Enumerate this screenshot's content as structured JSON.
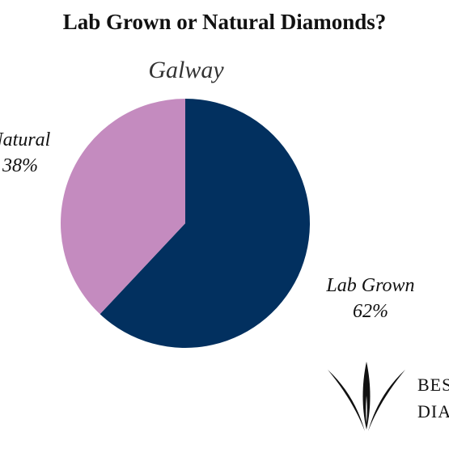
{
  "chart_data": {
    "type": "pie",
    "title": "Lab Grown or Natural Diamonds?",
    "subtitle": "Galway",
    "slices": [
      {
        "label": "Lab Grown",
        "value": 62,
        "value_label": "62%",
        "color": "#02305f"
      },
      {
        "label": "Natural",
        "value": 38,
        "value_label": "38%",
        "color": "#c48bbf"
      }
    ]
  },
  "brand": {
    "line1": "BES",
    "line2": "DIAI"
  }
}
